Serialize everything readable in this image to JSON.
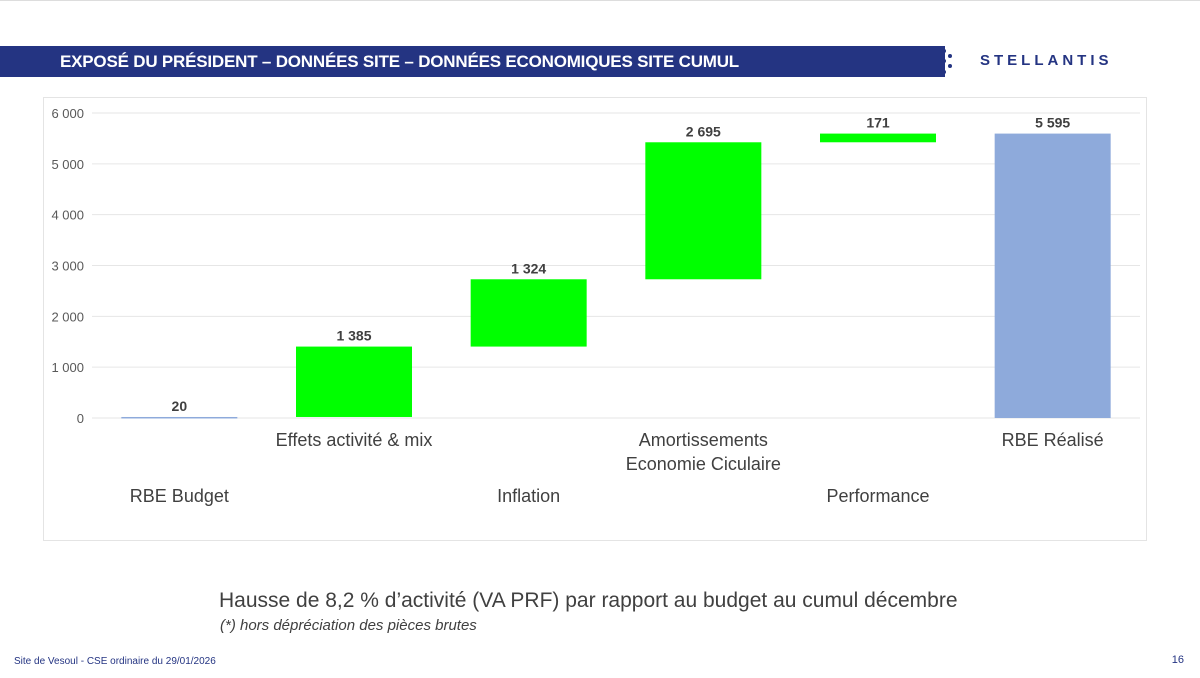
{
  "header": {
    "title": "EXPOSÉ DU PRÉSIDENT – DONNÉES SITE – DONNÉES ECONOMIQUES SITE CUMUL",
    "logo": "STELLANTIS"
  },
  "chart_data": {
    "type": "waterfall",
    "categories": [
      "RBE Budget",
      "Effets activité & mix",
      "Inflation",
      "Amortissements\nEconomie Ciculaire",
      "Performance",
      "RBE Réalisé"
    ],
    "values": [
      20,
      1385,
      1324,
      2695,
      171,
      5595
    ],
    "value_labels": [
      "20",
      "1 385",
      "1 324",
      "2 695",
      "171",
      "5 595"
    ],
    "kinds": [
      "total",
      "increase",
      "increase",
      "increase",
      "increase",
      "total"
    ],
    "ylim": [
      0,
      6000
    ],
    "yticks": [
      0,
      1000,
      2000,
      3000,
      4000,
      5000,
      6000
    ],
    "ytick_labels": [
      "0",
      "1 000",
      "2 000",
      "3 000",
      "4 000",
      "5 000",
      "6 000"
    ],
    "grid": true,
    "colors": {
      "total": "#8eaadb",
      "increase": "#00ff00"
    }
  },
  "caption": "Hausse de 8,2 % d’activité (VA PRF) par rapport au budget au cumul décembre",
  "note": "(*) hors dépréciation des pièces brutes",
  "footer": {
    "left": "Site de Vesoul - CSE ordinaire du 29/01/2026",
    "page": "16"
  }
}
